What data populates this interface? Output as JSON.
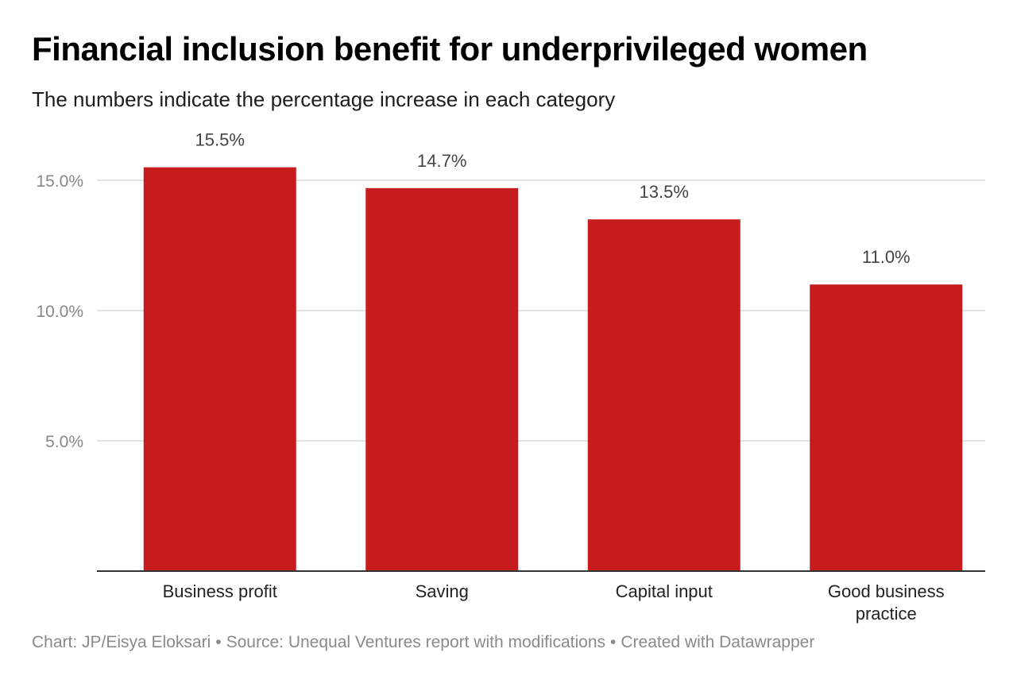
{
  "header": {
    "title": "Financial inclusion benefit for underprivileged women",
    "subtitle": "The numbers indicate the percentage increase in each category"
  },
  "footer": {
    "chart_credit": "Chart: JP/Eisya Eloksari",
    "source": "Source: Unequal Ventures report with modifications",
    "created_with": "Created with Datawrapper",
    "separator": "•"
  },
  "chart_data": {
    "type": "bar",
    "title": "Financial inclusion benefit for underprivileged women",
    "subtitle": "The numbers indicate the percentage increase in each category",
    "categories": [
      "Business profit",
      "Saving",
      "Capital input",
      "Good business practice"
    ],
    "category_label_lines": [
      [
        "Business profit"
      ],
      [
        "Saving"
      ],
      [
        "Capital input"
      ],
      [
        "Good business",
        "practice"
      ]
    ],
    "values": [
      15.5,
      14.7,
      13.5,
      11.0
    ],
    "value_labels": [
      "15.5%",
      "14.7%",
      "13.5%",
      "11.0%"
    ],
    "y_ticks": [
      5,
      10,
      15
    ],
    "y_tick_labels": [
      "5.0%",
      "10.0%",
      "15.0%"
    ],
    "ylim": [
      0,
      15.5
    ],
    "grid": true,
    "bar_color": "#c71c1e",
    "grid_color": "#d9d9d9",
    "axis_color": "#333333",
    "tick_label_color": "#888888",
    "value_label_color": "#444444"
  }
}
